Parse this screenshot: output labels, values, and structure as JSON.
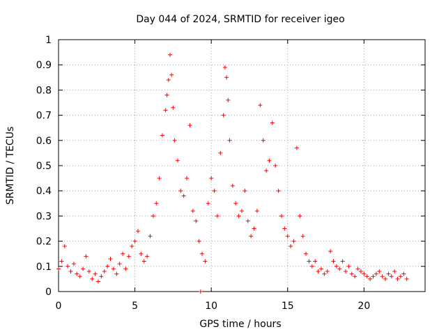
{
  "chart_data": {
    "type": "scatter",
    "title": "Day 044 of 2024, SRMTID for receiver igeo",
    "xlabel": "GPS time / hours",
    "ylabel": "SRMTID / TECUs",
    "xlim": [
      0,
      24
    ],
    "ylim": [
      0,
      1
    ],
    "x_ticks": [
      0,
      5,
      10,
      15,
      20
    ],
    "x_tick_labels": [
      "0",
      "5",
      "10",
      "15",
      "20"
    ],
    "y_ticks": [
      0,
      0.1,
      0.2,
      0.3,
      0.4,
      0.5,
      0.6,
      0.7,
      0.8,
      0.9,
      1
    ],
    "y_tick_labels": [
      "0",
      "0.1",
      "0.2",
      "0.3",
      "0.4",
      "0.5",
      "0.6",
      "0.7",
      "0.8",
      "0.9",
      "1"
    ],
    "grid": true,
    "marker": "+",
    "series": [
      {
        "name": "SRMTID",
        "color": "#ff0000",
        "x": [
          0.0,
          0.2,
          0.4,
          0.6,
          0.8,
          1.0,
          1.2,
          1.4,
          1.6,
          1.8,
          2.0,
          2.2,
          2.4,
          2.6,
          2.8,
          3.0,
          3.2,
          3.4,
          3.6,
          3.8,
          4.0,
          4.2,
          4.4,
          4.6,
          4.8,
          5.0,
          5.2,
          5.4,
          5.6,
          5.8,
          6.0,
          6.2,
          6.4,
          6.6,
          6.8,
          7.0,
          7.1,
          7.2,
          7.3,
          7.4,
          7.5,
          7.6,
          7.8,
          8.0,
          8.2,
          8.4,
          8.6,
          8.8,
          9.0,
          9.2,
          9.4,
          9.6,
          9.8,
          10.0,
          10.2,
          10.4,
          10.6,
          10.8,
          10.9,
          11.0,
          11.1,
          11.2,
          11.4,
          11.6,
          11.8,
          12.0,
          12.2,
          12.4,
          12.6,
          12.8,
          13.0,
          13.2,
          13.4,
          13.6,
          13.8,
          14.0,
          14.2,
          14.4,
          14.6,
          14.8,
          15.0,
          15.2,
          15.4,
          15.6,
          15.8,
          16.0,
          16.2,
          16.4,
          16.6,
          16.8,
          17.0,
          17.2,
          17.4,
          17.6,
          17.8,
          18.0,
          18.2,
          18.4,
          18.6,
          18.8,
          19.0,
          19.2,
          19.4,
          19.6,
          19.8,
          20.0,
          20.2,
          20.4,
          20.6,
          20.8,
          21.0,
          21.2,
          21.4,
          21.6,
          21.8,
          22.0,
          22.2,
          22.4,
          22.6,
          22.8
        ],
        "y": [
          0.09,
          0.12,
          0.18,
          0.1,
          0.08,
          0.11,
          0.07,
          0.06,
          0.09,
          0.14,
          0.08,
          0.05,
          0.07,
          0.04,
          0.06,
          0.08,
          0.1,
          0.13,
          0.09,
          0.07,
          0.11,
          0.15,
          0.09,
          0.14,
          0.18,
          0.2,
          0.24,
          0.15,
          0.12,
          0.14,
          0.22,
          0.3,
          0.35,
          0.45,
          0.62,
          0.72,
          0.78,
          0.84,
          0.94,
          0.86,
          0.73,
          0.6,
          0.52,
          0.4,
          0.38,
          0.45,
          0.66,
          0.32,
          0.28,
          0.2,
          0.15,
          0.12,
          0.35,
          0.45,
          0.4,
          0.3,
          0.55,
          0.7,
          0.89,
          0.85,
          0.76,
          0.6,
          0.42,
          0.35,
          0.3,
          0.32,
          0.4,
          0.28,
          0.22,
          0.25,
          0.32,
          0.74,
          0.6,
          0.48,
          0.52,
          0.67,
          0.5,
          0.4,
          0.3,
          0.25,
          0.22,
          0.18,
          0.2,
          0.57,
          0.3,
          0.22,
          0.15,
          0.12,
          0.1,
          0.12,
          0.08,
          0.09,
          0.07,
          0.08,
          0.16,
          0.12,
          0.1,
          0.09,
          0.12,
          0.08,
          0.1,
          0.07,
          0.06,
          0.09,
          0.08,
          0.07,
          0.06,
          0.05,
          0.06,
          0.07,
          0.08,
          0.06,
          0.05,
          0.07,
          0.06,
          0.08,
          0.05,
          0.06,
          0.07,
          0.05
        ]
      }
    ],
    "extra_points": [
      {
        "x": 9.3,
        "y": 0.0
      }
    ]
  }
}
